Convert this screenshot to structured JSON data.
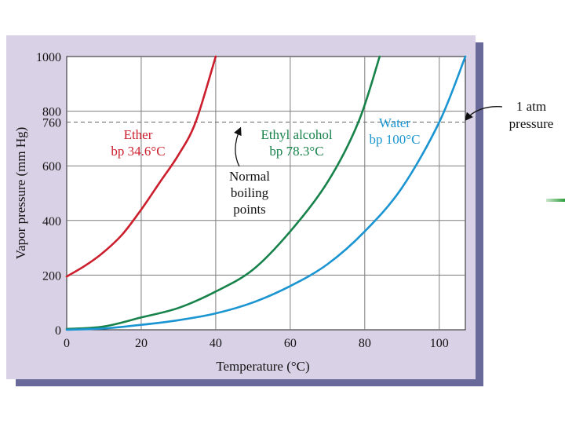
{
  "chart_data": {
    "type": "line",
    "xlabel": "Temperature (°C)",
    "ylabel": "Vapor pressure (mm Hg)",
    "xlim": [
      0,
      107
    ],
    "ylim": [
      0,
      1000
    ],
    "x_ticks": [
      0,
      20,
      40,
      60,
      80,
      100
    ],
    "y_ticks": [
      0,
      200,
      400,
      600,
      760,
      800,
      1000
    ],
    "grid": true,
    "reference_line": {
      "y": 760,
      "label_line1": "1 atm",
      "label_line2": "pressure"
    },
    "annotation": {
      "line1": "Normal",
      "line2": "boiling",
      "line3": "points"
    },
    "series": [
      {
        "name": "Ether",
        "bp_label": "bp 34.6°C",
        "color": "#cc1f2d",
        "x": [
          0,
          5,
          10,
          15,
          20,
          25,
          30,
          34.6,
          40
        ],
        "y": [
          195,
          235,
          285,
          350,
          440,
          540,
          640,
          760,
          1000
        ]
      },
      {
        "name": "Ethyl alcohol",
        "bp_label": "bp 78.3°C",
        "color": "#17824a",
        "x": [
          0,
          10,
          20,
          30,
          40,
          50,
          60,
          70,
          78.3,
          84
        ],
        "y": [
          3,
          12,
          45,
          80,
          140,
          220,
          360,
          540,
          760,
          1000
        ]
      },
      {
        "name": "Water",
        "bp_label": "bp 100°C",
        "color": "#1b95d1",
        "x": [
          0,
          10,
          20,
          30,
          40,
          50,
          60,
          70,
          80,
          90,
          100,
          107
        ],
        "y": [
          0,
          5,
          18,
          35,
          60,
          100,
          160,
          240,
          360,
          520,
          760,
          1000
        ]
      }
    ]
  }
}
